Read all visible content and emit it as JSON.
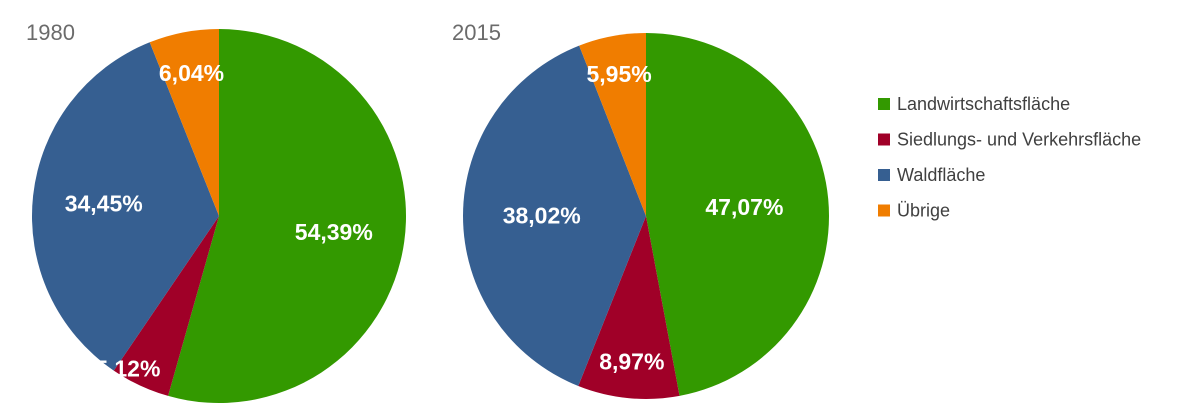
{
  "chart_data": [
    {
      "type": "pie",
      "title": "1980",
      "categories": [
        "Landwirtschaftsfläche",
        "Siedlungs- und Verkehrsfläche",
        "Waldfläche",
        "Übrige"
      ],
      "values": [
        54.39,
        5.12,
        34.45,
        6.04
      ],
      "labels": [
        "54,39%",
        "5,12%",
        "34,45%",
        "6,04%"
      ],
      "start_angle": "12 o'clock",
      "direction": "clockwise"
    },
    {
      "type": "pie",
      "title": "2015",
      "categories": [
        "Landwirtschaftsfläche",
        "Siedlungs- und Verkehrsfläche",
        "Waldfläche",
        "Übrige"
      ],
      "values": [
        47.07,
        8.97,
        38.02,
        5.95
      ],
      "labels": [
        "47,07%",
        "8,97%",
        "38,02%",
        "5,95%"
      ],
      "start_angle": "12 o'clock",
      "direction": "clockwise"
    }
  ],
  "legend": {
    "placement": "right",
    "items": [
      {
        "label": "Landwirtschaftsfläche",
        "color": "#339900"
      },
      {
        "label": "Siedlungs- und Verkehrsfläche",
        "color": "#a00028"
      },
      {
        "label": "Waldfläche",
        "color": "#365f91"
      },
      {
        "label": "Übrige",
        "color": "#f07d00"
      }
    ]
  }
}
